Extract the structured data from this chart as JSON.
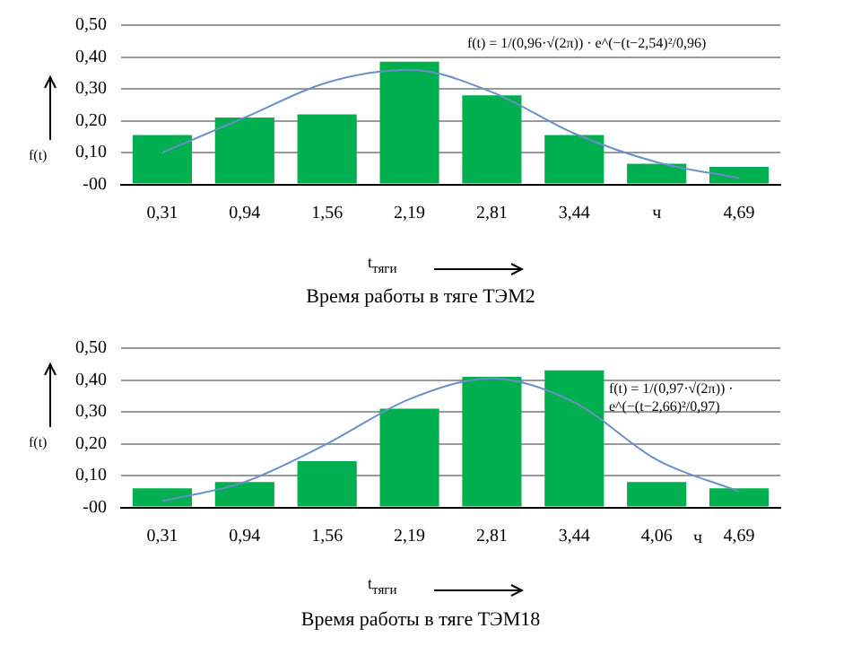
{
  "chart_data": [
    {
      "type": "bar",
      "title": "Время работы в тяге ТЭМ2",
      "xlabel": "t$_{тяги}$",
      "ylabel": "f(t)",
      "categories": [
        "0,31",
        "0,94",
        "1,56",
        "2,19",
        "2,81",
        "3,44",
        "ч",
        "4,69"
      ],
      "series": [
        {
          "color": "#00b050",
          "values": [
            0.155,
            0.21,
            0.22,
            0.385,
            0.28,
            0.155,
            0.065,
            0.055
          ]
        },
        {
          "type": "line",
          "color": "#6a8fc8",
          "values": [
            0.1,
            0.21,
            0.32,
            0.36,
            0.29,
            0.16,
            0.07,
            0.02
          ]
        }
      ],
      "ylim": [
        0,
        0.5
      ],
      "yticks": [
        {
          "value": 0,
          "label": "-00"
        },
        {
          "value": 0.1,
          "label": "0,10"
        },
        {
          "value": 0.2,
          "label": "0,20"
        },
        {
          "value": 0.3,
          "label": "0,30"
        },
        {
          "value": 0.4,
          "label": "0,40"
        },
        {
          "value": 0.5,
          "label": "0,50"
        }
      ],
      "grid": "y",
      "legend": false,
      "marker": "none",
      "annotations": [
        "f(t) = 1/(0,96·√(2π)) · e^(−(t−2,54)²/0,96)"
      ]
    },
    {
      "type": "bar",
      "title": "Время работы в тяге ТЭМ18",
      "xlabel": "t$_{тяги}$",
      "ylabel": "f(t)",
      "categories": [
        "0,31",
        "0,94",
        "1,56",
        "2,19",
        "2,81",
        "3,44",
        "4,06",
        "4,69"
      ],
      "series": [
        {
          "color": "#00b050",
          "values": [
            0.06,
            0.08,
            0.145,
            0.31,
            0.41,
            0.43,
            0.08,
            0.06
          ]
        },
        {
          "type": "line",
          "color": "#6a8fc8",
          "values": [
            0.02,
            0.08,
            0.2,
            0.34,
            0.405,
            0.33,
            0.15,
            0.05
          ]
        }
      ],
      "ylim": [
        0,
        0.5
      ],
      "yticks": [
        {
          "value": 0,
          "label": "-00"
        },
        {
          "value": 0.1,
          "label": "0,10"
        },
        {
          "value": 0.2,
          "label": "0,20"
        },
        {
          "value": 0.3,
          "label": "0,30"
        },
        {
          "value": 0.4,
          "label": "0,40"
        },
        {
          "value": 0.5,
          "label": "0,50"
        }
      ],
      "grid": "y",
      "legend": false,
      "marker": "none",
      "annotations": [
        "f(t) = 1/(0,97·√(2π)) · e^(−(t−2,66)²/0,97)",
        "ч"
      ]
    }
  ]
}
